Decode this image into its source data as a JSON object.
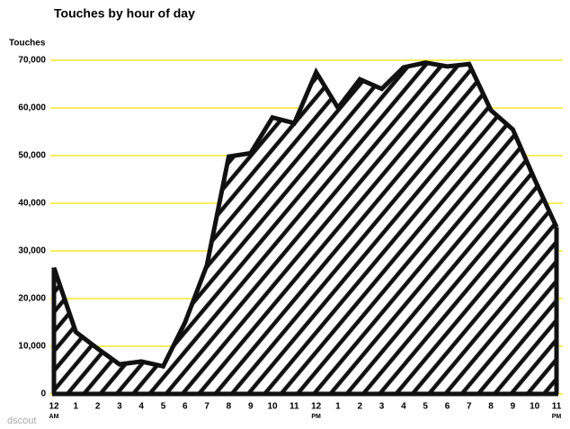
{
  "chart_data": {
    "type": "area",
    "title": "Touches by hour of day",
    "y_label": "Touches",
    "source": "dscout",
    "categories": [
      "12",
      "1",
      "2",
      "3",
      "4",
      "5",
      "6",
      "7",
      "8",
      "9",
      "10",
      "11",
      "12",
      "1",
      "2",
      "3",
      "4",
      "5",
      "6",
      "7",
      "8",
      "9",
      "10",
      "11"
    ],
    "x_sublabels": [
      "AM",
      null,
      null,
      null,
      null,
      null,
      null,
      null,
      null,
      null,
      null,
      null,
      "PM",
      null,
      null,
      null,
      null,
      null,
      null,
      null,
      null,
      null,
      null,
      "PM"
    ],
    "values": [
      26500,
      13000,
      9500,
      6200,
      6800,
      5800,
      15000,
      27000,
      49800,
      50500,
      58000,
      56800,
      67500,
      60000,
      66000,
      64000,
      68500,
      69500,
      68700,
      69200,
      59500,
      55500,
      45000,
      35000
    ],
    "color": "#111111",
    "grid_color": "#f2e200",
    "ylim": [
      0,
      70000
    ],
    "yticks": [
      0,
      {
        "value": 10000,
        "label": "10,000"
      },
      {
        "value": 20000,
        "label": "20,000"
      },
      {
        "value": 30000,
        "label": "30,000"
      },
      {
        "value": 40000,
        "label": "40,000"
      },
      {
        "value": 50000,
        "label": "50,000"
      },
      {
        "value": 60000,
        "label": "60,000"
      },
      {
        "value": 70000,
        "label": "70,000"
      }
    ],
    "grid": true
  }
}
